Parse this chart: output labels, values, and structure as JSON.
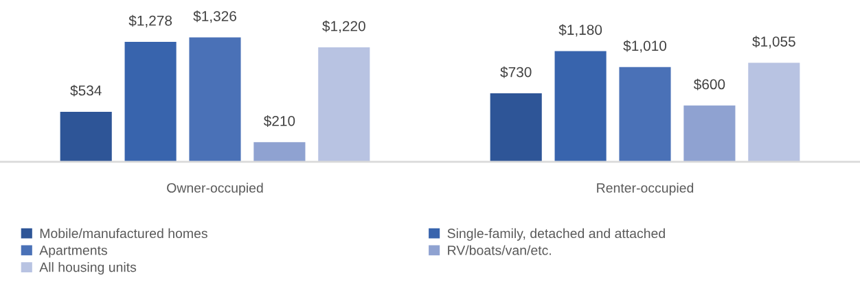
{
  "chart_data": {
    "type": "bar",
    "categories": [
      "Owner-occupied",
      "Renter-occupied"
    ],
    "series": [
      {
        "name": "Mobile/manufactured homes",
        "color": "#2e5597",
        "values": [
          534,
          730
        ],
        "value_labels": [
          "$534",
          "$730"
        ]
      },
      {
        "name": "Single-family, detached and attached",
        "color": "#3864ad",
        "values": [
          1278,
          1180
        ],
        "value_labels": [
          "$1,278",
          "$1,180"
        ]
      },
      {
        "name": "Apartments",
        "color": "#4a71b7",
        "values": [
          1326,
          1010
        ],
        "value_labels": [
          "$1,326",
          "$1,010"
        ]
      },
      {
        "name": "RV/boats/van/etc.",
        "color": "#8fa2d1",
        "values": [
          210,
          600
        ],
        "value_labels": [
          "$210",
          "$600"
        ]
      },
      {
        "name": "All housing units",
        "color": "#b8c3e2",
        "values": [
          1220,
          1055
        ],
        "value_labels": [
          "$1,220",
          "$1,055"
        ]
      }
    ],
    "legend": "bottom",
    "grid": false
  }
}
